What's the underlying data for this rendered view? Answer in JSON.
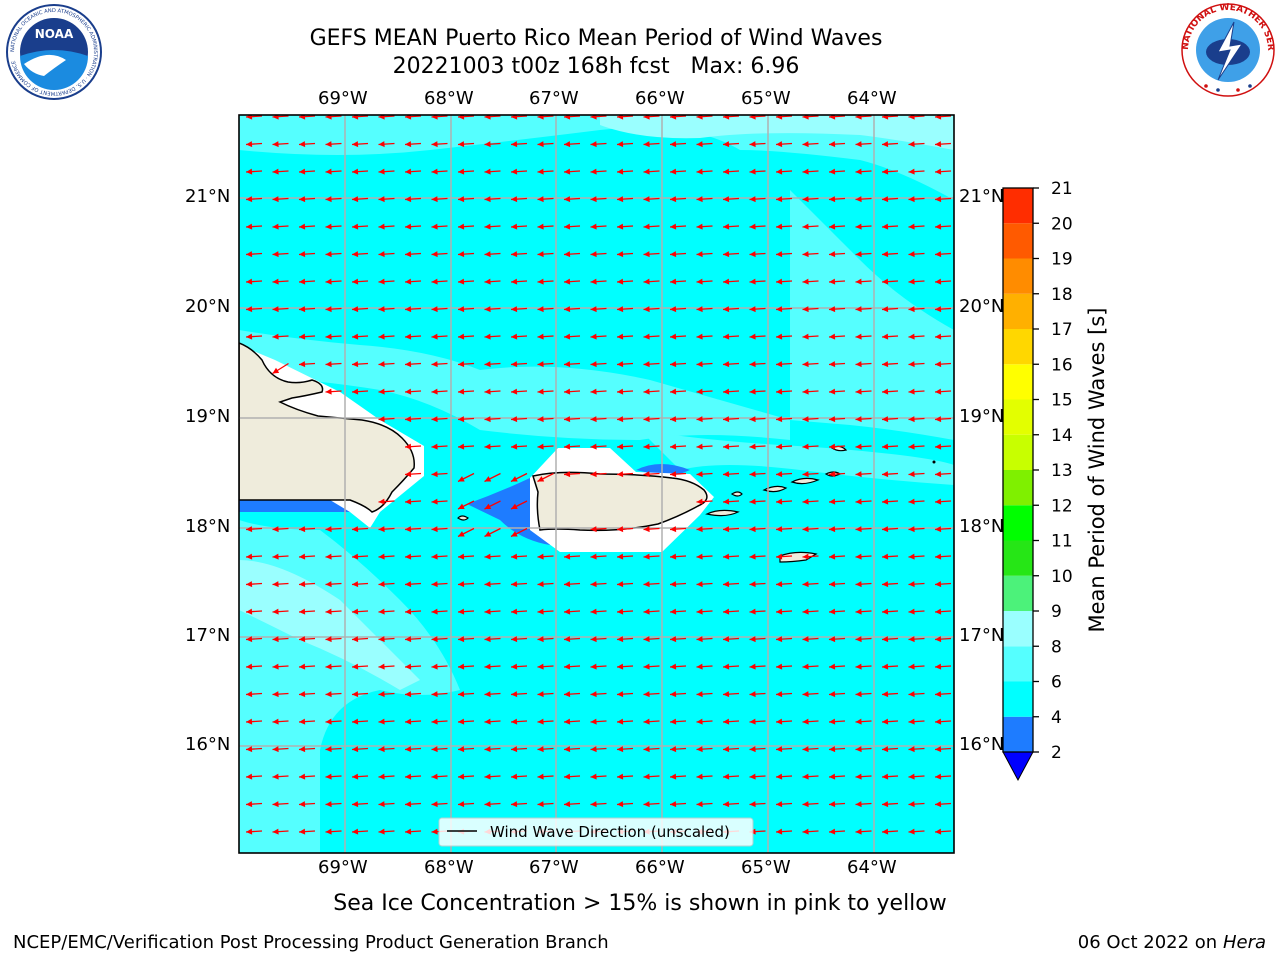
{
  "header": {
    "title_line1": "GEFS MEAN Puerto Rico Mean Period of Wind Waves",
    "title_line2": "20221003 t00z 168h fcst   Max: 6.96"
  },
  "logos": {
    "noaa_text": "NOAA",
    "noaa_ring_text": "NATIONAL OCEANIC AND ATMOSPHERIC ADMINISTRATION · U.S. DEPARTMENT OF COMMERCE",
    "nws_ring_text": "NATIONAL WEATHER SERVICE"
  },
  "map": {
    "lon_labels": [
      "69°W",
      "68°W",
      "67°W",
      "66°W",
      "65°W",
      "64°W"
    ],
    "lat_labels": [
      "21°N",
      "20°N",
      "19°N",
      "18°N",
      "17°N",
      "16°N"
    ],
    "legend_label": "Wind Wave Direction (unscaled)",
    "colors": {
      "ocean_main": "#00ffff",
      "ocean_light": "#55ffff",
      "ocean_lighter": "#9affff",
      "short_period": "#1e7cff",
      "land": "#efecdc",
      "arrows": "#ff0000",
      "grid": "#b0b0b0"
    }
  },
  "colorbar": {
    "label": "Mean Period of Wind Waves [s]",
    "ticks": [
      "2",
      "4",
      "6",
      "8",
      "9",
      "10",
      "11",
      "12",
      "13",
      "14",
      "15",
      "16",
      "17",
      "18",
      "19",
      "20",
      "21"
    ],
    "colors": [
      "#1e7cff",
      "#00ffff",
      "#55ffff",
      "#9affff",
      "#4cf27a",
      "#26e616",
      "#00ff00",
      "#7ff000",
      "#c8ff00",
      "#e3ff00",
      "#ffff00",
      "#ffd700",
      "#ffb000",
      "#ff8c00",
      "#ff5a00",
      "#ff2d00"
    ],
    "extend_color": "#0000ff"
  },
  "footer": {
    "note": "Sea Ice Concentration > 15% is shown in pink to yellow",
    "org": "NCEP/EMC/Verification Post Processing Product Generation Branch",
    "date": "06 Oct 2022 on ",
    "machine": "Hera"
  }
}
